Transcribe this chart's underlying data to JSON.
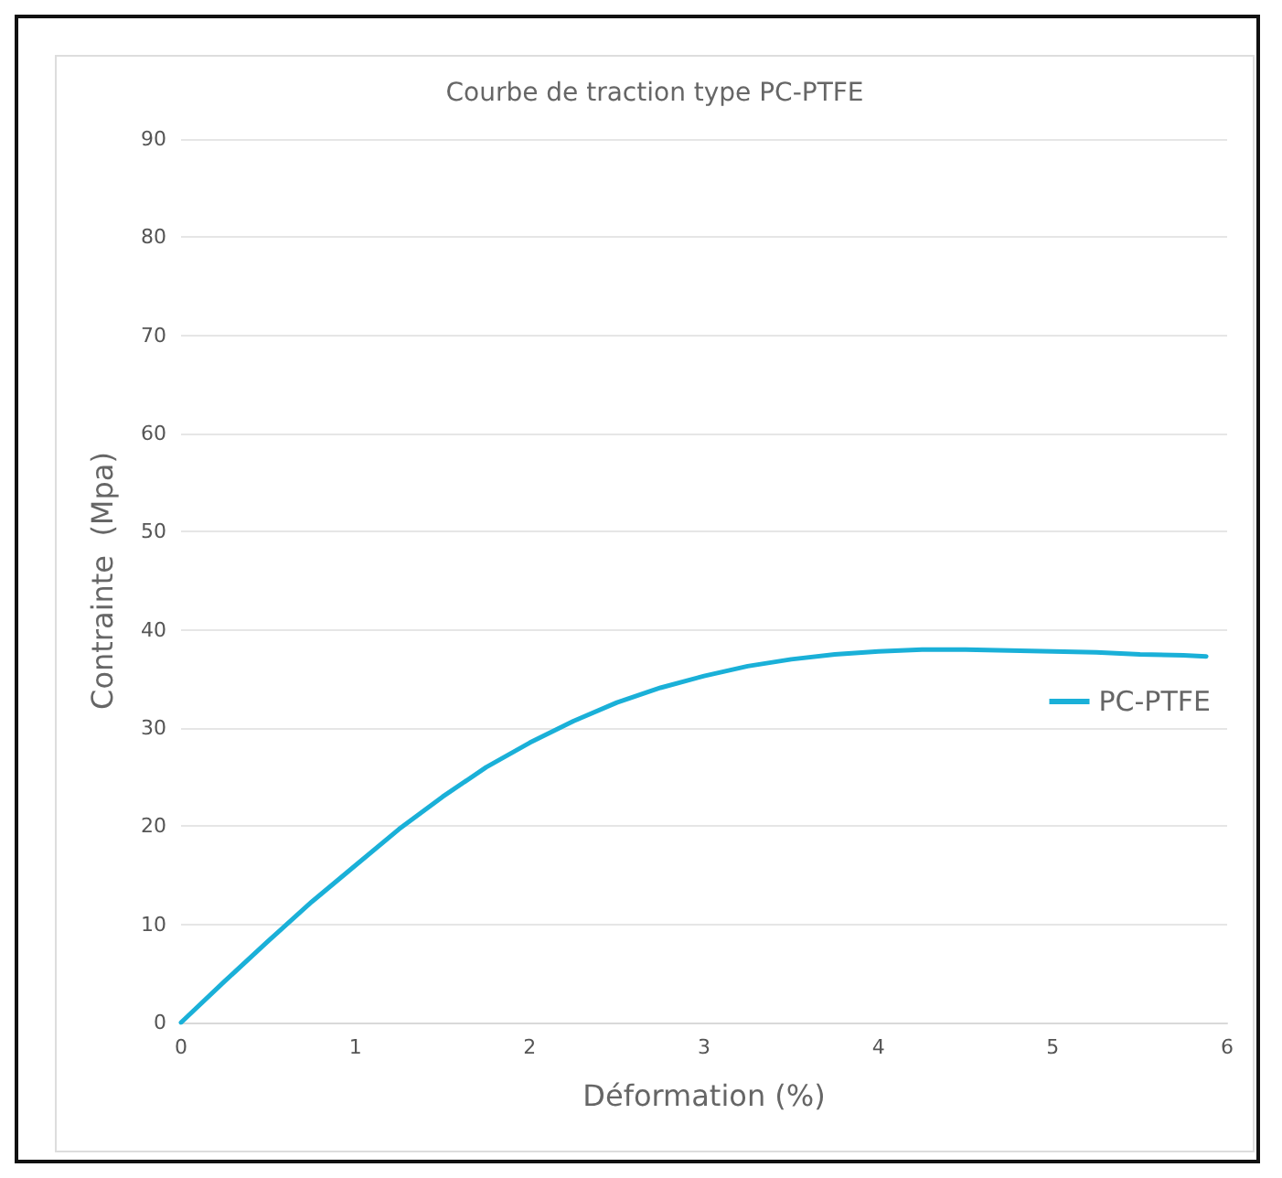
{
  "chart_data": {
    "type": "line",
    "title": "Courbe de traction type PC-PTFE",
    "xlabel": "Déformation (%)",
    "ylabel": "Contrainte  (Mpa)",
    "xlim": [
      0,
      6
    ],
    "xticks": [
      0,
      1,
      2,
      3,
      4,
      5,
      6
    ],
    "ylim": [
      0,
      90
    ],
    "yticks": [
      0,
      10,
      20,
      30,
      40,
      50,
      60,
      70,
      80,
      90
    ],
    "grid": "y",
    "legend": "right",
    "marker": "none",
    "line_style": "solid",
    "series": [
      {
        "name": "PC-PTFE",
        "color": "#1ab0d8",
        "x": [
          0,
          0.25,
          0.5,
          0.75,
          1,
          1.25,
          1.5,
          1.75,
          2,
          2.25,
          2.5,
          2.75,
          3,
          3.25,
          3.5,
          3.75,
          4,
          4.25,
          4.5,
          4.75,
          5,
          5.25,
          5.5,
          5.75,
          5.88
        ],
        "values": [
          0,
          4.2,
          8.3,
          12.3,
          16,
          19.7,
          23,
          26,
          28.5,
          30.7,
          32.6,
          34.1,
          35.3,
          36.3,
          37,
          37.5,
          37.8,
          38,
          38,
          37.9,
          37.8,
          37.7,
          37.5,
          37.4,
          37.3
        ]
      }
    ]
  }
}
